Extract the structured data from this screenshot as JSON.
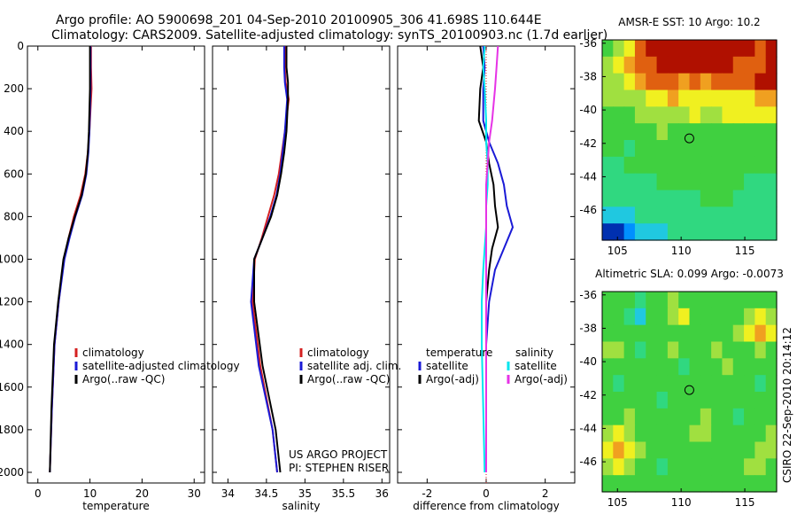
{
  "figure": {
    "title_line1": "Argo profile: AO 5900698_201 04-Sep-2010 20100905_306 41.698S 110.644E",
    "title_line2": "Climatology: CARS2009. Satellite-adjusted climatology: synTS_20100903.nc (1.7d earlier)",
    "credit": "CSIRO 22-Sep-2010 20:14:12",
    "project_line1": "US ARGO PROJECT",
    "project_line2": "PI: STEPHEN RISER"
  },
  "colors": {
    "climatology": "#d42020",
    "satellite": "#1a1ad6",
    "argo": "#000000",
    "sal_satellite": "#00e5ee",
    "sal_argo": "#e633e6",
    "circle": "#000000"
  },
  "chart_data": [
    {
      "id": "temperature",
      "type": "line",
      "xlabel": "temperature",
      "ylabel": "",
      "xlim": [
        -2,
        32
      ],
      "ylim": [
        2050,
        0
      ],
      "xticks": [
        0,
        10,
        20,
        30
      ],
      "yticks": [
        0,
        200,
        400,
        600,
        800,
        1000,
        1200,
        1400,
        1600,
        1800,
        2000
      ],
      "legend": [
        "climatology",
        "satellite-adjusted climatology",
        "Argo(..raw -QC)"
      ],
      "legend_position": "lower-right",
      "series": [
        {
          "name": "climatology",
          "color_key": "climatology",
          "x": [
            10.2,
            10.2,
            10.3,
            10.1,
            9.9,
            9.6,
            9.1,
            8.2,
            6.9,
            5.9,
            5.0,
            4.0,
            3.2,
            2.7,
            2.3
          ],
          "y": [
            0,
            100,
            200,
            300,
            400,
            500,
            600,
            700,
            800,
            900,
            1000,
            1200,
            1400,
            1700,
            2000
          ]
        },
        {
          "name": "satellite-adjusted climatology",
          "color_key": "satellite",
          "x": [
            10.1,
            10.1,
            10.1,
            10.0,
            9.9,
            9.7,
            9.3,
            8.5,
            7.2,
            6.1,
            5.1,
            4.0,
            3.2,
            2.7,
            2.3
          ],
          "y": [
            0,
            100,
            200,
            300,
            400,
            500,
            600,
            700,
            800,
            900,
            1000,
            1200,
            1400,
            1700,
            2000
          ]
        },
        {
          "name": "Argo(..raw -QC)",
          "color_key": "argo",
          "x": [
            10.0,
            10.0,
            10.0,
            9.9,
            9.8,
            9.6,
            9.2,
            8.4,
            7.1,
            5.9,
            4.9,
            3.9,
            3.1,
            2.6,
            2.3
          ],
          "y": [
            0,
            100,
            200,
            300,
            400,
            500,
            600,
            700,
            800,
            900,
            1000,
            1200,
            1400,
            1700,
            2000
          ]
        }
      ]
    },
    {
      "id": "salinity",
      "type": "line",
      "xlabel": "salinity",
      "ylabel": "",
      "xlim": [
        33.8,
        36.1
      ],
      "ylim": [
        2050,
        0
      ],
      "xticks": [
        34,
        34.5,
        35,
        35.5,
        36
      ],
      "legend": [
        "climatology",
        "satellite adj. clim.",
        "Argo(..raw -QC)"
      ],
      "legend_position": "lower-right",
      "series": [
        {
          "name": "climatology",
          "color_key": "climatology",
          "x": [
            34.74,
            34.74,
            34.75,
            34.79,
            34.74,
            34.7,
            34.66,
            34.6,
            34.52,
            34.44,
            34.35,
            34.32,
            34.42,
            34.58,
            34.64
          ],
          "y": [
            0,
            100,
            170,
            250,
            400,
            500,
            600,
            700,
            800,
            900,
            1000,
            1200,
            1500,
            1800,
            2000
          ]
        },
        {
          "name": "satellite adj. clim.",
          "color_key": "satellite",
          "x": [
            34.73,
            34.73,
            34.74,
            34.77,
            34.74,
            34.71,
            34.68,
            34.63,
            34.55,
            34.45,
            34.34,
            34.3,
            34.4,
            34.58,
            34.64
          ],
          "y": [
            0,
            100,
            170,
            250,
            400,
            500,
            600,
            700,
            800,
            900,
            1000,
            1200,
            1500,
            1800,
            2000
          ]
        },
        {
          "name": "Argo(..raw -QC)",
          "color_key": "argo",
          "x": [
            34.76,
            34.76,
            34.78,
            34.78,
            34.76,
            34.73,
            34.69,
            34.64,
            34.56,
            34.45,
            34.34,
            34.34,
            34.45,
            34.62,
            34.68
          ],
          "y": [
            0,
            100,
            170,
            250,
            400,
            500,
            600,
            700,
            800,
            900,
            1000,
            1200,
            1500,
            1800,
            2000
          ]
        }
      ]
    },
    {
      "id": "difference",
      "type": "line",
      "xlabel": "difference from climatology",
      "ylabel": "",
      "xlim": [
        -3.0,
        3.0
      ],
      "ylim": [
        2050,
        0
      ],
      "xticks": [
        -2,
        0,
        2
      ],
      "legend_temperature_title": "temperature",
      "legend_salinity_title": "salinity",
      "legend": [
        "satellite",
        "Argo(-adj)",
        "satellite",
        "Argo(-adj)"
      ],
      "legend_position": "lower-center",
      "series": [
        {
          "name": "temperature satellite",
          "color_key": "satellite",
          "x": [
            -0.1,
            -0.05,
            -0.1,
            -0.1,
            0.1,
            0.4,
            0.6,
            0.7,
            0.9,
            0.6,
            0.3,
            0.1,
            0.0,
            0.0,
            0.0
          ],
          "y": [
            0,
            100,
            200,
            350,
            450,
            550,
            650,
            750,
            850,
            950,
            1050,
            1200,
            1400,
            1700,
            2000
          ]
        },
        {
          "name": "temperature Argo(-adj)",
          "color_key": "argo",
          "x": [
            -0.2,
            -0.1,
            -0.2,
            -0.25,
            0.0,
            0.1,
            0.25,
            0.3,
            0.4,
            0.2,
            0.1,
            0.0,
            0.0,
            0.0,
            0.0
          ],
          "y": [
            0,
            100,
            200,
            350,
            450,
            550,
            650,
            750,
            850,
            950,
            1050,
            1200,
            1400,
            1700,
            2000
          ]
        },
        {
          "name": "salinity satellite",
          "color_key": "sal_satellite",
          "x": [
            -0.05,
            -0.1,
            -0.05,
            0.0,
            0.0,
            0.05,
            0.05,
            0.0,
            0.0,
            -0.05,
            -0.1,
            -0.15,
            -0.15,
            -0.1,
            -0.05
          ],
          "y": [
            0,
            100,
            200,
            350,
            450,
            550,
            650,
            750,
            850,
            950,
            1050,
            1200,
            1400,
            1700,
            2000
          ]
        },
        {
          "name": "salinity Argo(-adj)",
          "color_key": "sal_argo",
          "x": [
            0.4,
            0.35,
            0.3,
            0.2,
            0.1,
            0.05,
            0.0,
            0.0,
            0.0,
            0.0,
            0.0,
            0.0,
            0.0,
            0.0,
            0.0
          ],
          "y": [
            0,
            100,
            200,
            350,
            450,
            550,
            650,
            750,
            850,
            950,
            1050,
            1200,
            1400,
            1700,
            2000
          ]
        }
      ]
    },
    {
      "id": "sst_map",
      "type": "heatmap",
      "title": "AMSR-E SST: 10 Argo: 10.2",
      "xlim": [
        103.8,
        117.5
      ],
      "ylim": [
        -47.8,
        -35.8
      ],
      "xticks": [
        105,
        110,
        115
      ],
      "yticks": [
        -36,
        -38,
        -40,
        -42,
        -44,
        -46
      ],
      "marker": {
        "lon": 110.644,
        "lat": -41.698
      },
      "palette": [
        "#0030b0",
        "#0090ff",
        "#20c8e0",
        "#30d880",
        "#40d040",
        "#a0e040",
        "#f0f020",
        "#f0a020",
        "#e06010",
        "#b01000"
      ],
      "grid": [
        [
          4,
          5,
          6,
          8,
          9,
          9,
          9,
          9,
          9,
          9,
          9,
          9,
          9,
          9,
          8,
          9
        ],
        [
          5,
          6,
          7,
          8,
          8,
          9,
          9,
          9,
          9,
          9,
          9,
          9,
          8,
          8,
          8,
          9
        ],
        [
          5,
          5,
          6,
          7,
          8,
          8,
          8,
          7,
          8,
          7,
          8,
          8,
          8,
          8,
          9,
          9
        ],
        [
          5,
          5,
          5,
          5,
          6,
          6,
          7,
          6,
          6,
          6,
          6,
          6,
          6,
          6,
          7,
          7
        ],
        [
          4,
          4,
          4,
          5,
          5,
          5,
          5,
          5,
          6,
          5,
          5,
          6,
          6,
          6,
          6,
          6
        ],
        [
          4,
          4,
          4,
          4,
          4,
          5,
          4,
          4,
          4,
          4,
          4,
          4,
          4,
          4,
          4,
          4
        ],
        [
          4,
          4,
          3,
          4,
          4,
          4,
          4,
          4,
          4,
          4,
          4,
          4,
          4,
          4,
          4,
          4
        ],
        [
          3,
          3,
          4,
          4,
          4,
          4,
          4,
          4,
          4,
          4,
          4,
          4,
          4,
          4,
          4,
          4
        ],
        [
          3,
          3,
          3,
          3,
          3,
          4,
          4,
          4,
          4,
          4,
          4,
          4,
          4,
          3,
          3,
          3
        ],
        [
          3,
          3,
          3,
          3,
          3,
          3,
          3,
          3,
          3,
          4,
          4,
          4,
          3,
          3,
          3,
          3
        ],
        [
          2,
          2,
          2,
          3,
          3,
          3,
          3,
          3,
          3,
          3,
          3,
          3,
          3,
          3,
          3,
          3
        ],
        [
          0,
          0,
          1,
          2,
          2,
          2,
          3,
          3,
          3,
          3,
          3,
          3,
          3,
          3,
          3,
          3
        ]
      ]
    },
    {
      "id": "sla_map",
      "type": "heatmap",
      "title": "Altimetric SLA: 0.099 Argo: -0.0073",
      "xlim": [
        103.8,
        117.5
      ],
      "ylim": [
        -47.8,
        -35.8
      ],
      "xticks": [
        105,
        110,
        115
      ],
      "yticks": [
        -36,
        -38,
        -40,
        -42,
        -44,
        -46
      ],
      "marker": {
        "lon": 110.644,
        "lat": -41.698
      },
      "palette": [
        "#0030b0",
        "#0090ff",
        "#20c8e0",
        "#30d880",
        "#40d040",
        "#a0e040",
        "#f0f020",
        "#f0a020",
        "#e06010",
        "#b01000"
      ],
      "grid": [
        [
          4,
          4,
          4,
          3,
          4,
          4,
          5,
          4,
          4,
          4,
          4,
          4,
          4,
          4,
          4,
          4
        ],
        [
          4,
          4,
          3,
          2,
          4,
          4,
          5,
          6,
          4,
          4,
          4,
          4,
          4,
          5,
          6,
          5
        ],
        [
          4,
          4,
          4,
          4,
          4,
          4,
          4,
          4,
          4,
          4,
          4,
          4,
          5,
          6,
          7,
          6
        ],
        [
          5,
          5,
          4,
          3,
          4,
          4,
          5,
          4,
          4,
          4,
          5,
          4,
          4,
          4,
          5,
          4
        ],
        [
          4,
          4,
          4,
          4,
          4,
          4,
          4,
          3,
          4,
          4,
          4,
          5,
          4,
          4,
          4,
          4
        ],
        [
          4,
          3,
          4,
          4,
          4,
          4,
          4,
          4,
          4,
          4,
          4,
          4,
          4,
          4,
          3,
          4
        ],
        [
          4,
          4,
          4,
          4,
          4,
          3,
          4,
          4,
          4,
          4,
          4,
          4,
          4,
          4,
          4,
          4
        ],
        [
          4,
          4,
          5,
          4,
          4,
          4,
          4,
          4,
          4,
          5,
          4,
          4,
          3,
          4,
          4,
          4
        ],
        [
          5,
          6,
          5,
          4,
          4,
          4,
          4,
          4,
          5,
          5,
          4,
          4,
          4,
          4,
          4,
          5
        ],
        [
          6,
          7,
          6,
          5,
          4,
          4,
          4,
          4,
          4,
          4,
          4,
          4,
          4,
          4,
          5,
          5
        ],
        [
          5,
          6,
          5,
          4,
          4,
          3,
          4,
          4,
          4,
          4,
          4,
          4,
          4,
          5,
          5,
          4
        ],
        [
          4,
          4,
          4,
          4,
          4,
          4,
          4,
          4,
          4,
          4,
          4,
          4,
          4,
          4,
          4,
          4
        ]
      ]
    }
  ]
}
